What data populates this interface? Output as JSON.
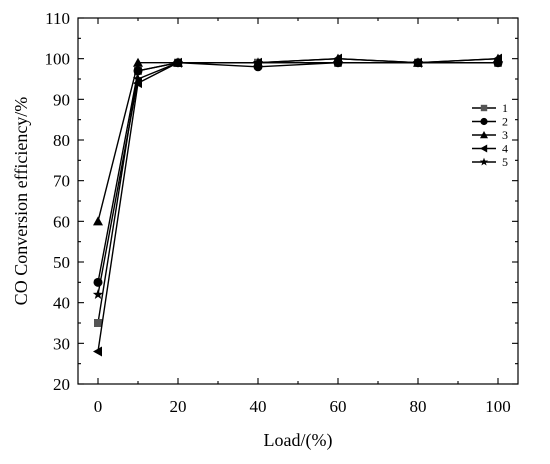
{
  "chart_data": {
    "type": "line",
    "title": "",
    "xlabel": "Load/(%)",
    "ylabel": "CO Conversion efficiency/%",
    "x": [
      0,
      10,
      20,
      40,
      60,
      80,
      100
    ],
    "xlim": [
      -5,
      105
    ],
    "ylim": [
      20,
      110
    ],
    "xticks": [
      0,
      20,
      40,
      60,
      80,
      100
    ],
    "yticks": [
      20,
      30,
      40,
      50,
      60,
      70,
      80,
      90,
      100,
      110
    ],
    "grid": false,
    "legend_position": "right",
    "series": [
      {
        "name": "1",
        "marker": "square",
        "color": "#555555",
        "values": [
          35,
          97,
          99,
          99,
          99,
          99,
          99
        ]
      },
      {
        "name": "2",
        "marker": "circle",
        "color": "#000000",
        "values": [
          45,
          97,
          99,
          98,
          99,
          99,
          99
        ]
      },
      {
        "name": "3",
        "marker": "triangle-up",
        "color": "#000000",
        "values": [
          60,
          99,
          99,
          99,
          100,
          99,
          100
        ]
      },
      {
        "name": "4",
        "marker": "triangle-left",
        "color": "#000000",
        "values": [
          28,
          94,
          99,
          99,
          100,
          99,
          100
        ]
      },
      {
        "name": "5",
        "marker": "star",
        "color": "#000000",
        "values": [
          42,
          95,
          99,
          99,
          99,
          99,
          99
        ]
      }
    ]
  }
}
